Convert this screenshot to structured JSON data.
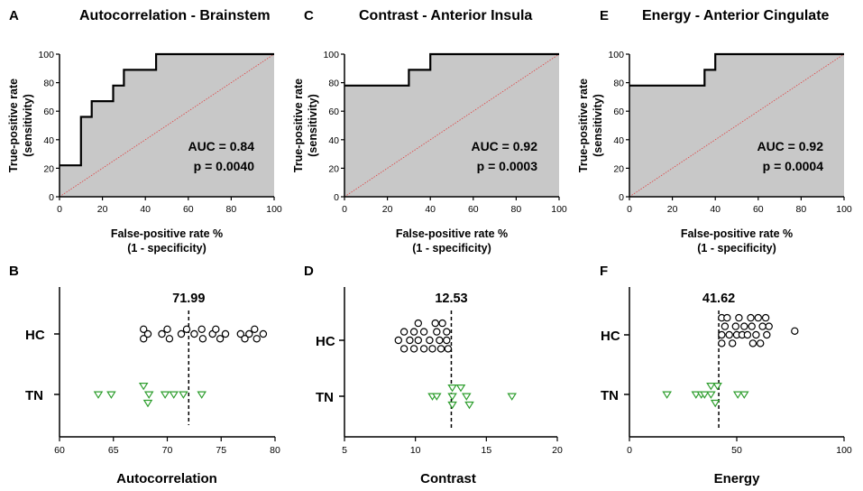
{
  "chart_data": [
    {
      "type": "line",
      "panel": "A",
      "title": "Autocorrelation - Brainstem",
      "xlabel": "False-positive rate %",
      "xlabel2": "(1 - specificity)",
      "ylabel": "True-positive rate",
      "ylabel2": "(sensitivity)",
      "xlim": [
        0,
        100
      ],
      "ylim": [
        0,
        100
      ],
      "xticks": [
        0,
        20,
        40,
        60,
        80,
        100
      ],
      "yticks": [
        0,
        20,
        40,
        60,
        80,
        100
      ],
      "auc_text": "AUC = 0.84",
      "p_text": "p = 0.0040",
      "roc": [
        [
          0,
          22
        ],
        [
          10,
          22
        ],
        [
          10,
          56
        ],
        [
          15,
          56
        ],
        [
          15,
          67
        ],
        [
          25,
          67
        ],
        [
          25,
          78
        ],
        [
          30,
          78
        ],
        [
          30,
          89
        ],
        [
          45,
          89
        ],
        [
          45,
          100
        ],
        [
          100,
          100
        ]
      ],
      "shaded": true
    },
    {
      "type": "line",
      "panel": "C",
      "title": "Contrast - Anterior Insula",
      "xlabel": "False-positive rate %",
      "xlabel2": "(1 - specificity)",
      "ylabel": "True-positive rate",
      "ylabel2": "(sensitivity)",
      "xlim": [
        0,
        100
      ],
      "ylim": [
        0,
        100
      ],
      "xticks": [
        0,
        20,
        40,
        60,
        80,
        100
      ],
      "yticks": [
        0,
        20,
        40,
        60,
        80,
        100
      ],
      "auc_text": "AUC = 0.92",
      "p_text": "p = 0.0003",
      "roc": [
        [
          0,
          78
        ],
        [
          30,
          78
        ],
        [
          30,
          89
        ],
        [
          40,
          89
        ],
        [
          40,
          100
        ],
        [
          100,
          100
        ]
      ],
      "shaded": true
    },
    {
      "type": "line",
      "panel": "E",
      "title": "Energy - Anterior Cingulate",
      "xlabel": "False-positive rate %",
      "xlabel2": "(1 - specificity)",
      "ylabel": "True-positive rate",
      "ylabel2": "(sensitivity)",
      "xlim": [
        0,
        100
      ],
      "ylim": [
        0,
        100
      ],
      "xticks": [
        0,
        20,
        40,
        60,
        80,
        100
      ],
      "yticks": [
        0,
        20,
        40,
        60,
        80,
        100
      ],
      "auc_text": "AUC = 0.92",
      "p_text": "p = 0.0004",
      "roc": [
        [
          0,
          78
        ],
        [
          35,
          78
        ],
        [
          35,
          89
        ],
        [
          40,
          89
        ],
        [
          40,
          100
        ],
        [
          100,
          100
        ]
      ],
      "shaded": true
    },
    {
      "type": "scatter",
      "panel": "B",
      "xlabel": "Autocorrelation",
      "xlim": [
        60,
        80
      ],
      "xticks": [
        60,
        65,
        70,
        75,
        80
      ],
      "threshold": 71.99,
      "threshold_label": "71.99",
      "groups": [
        "HC",
        "TN"
      ],
      "series": [
        {
          "name": "HC",
          "marker": "circle",
          "color": "#000000",
          "points": [
            [
              67.8,
              0.5
            ],
            [
              67.8,
              -0.5
            ],
            [
              68.2,
              0
            ],
            [
              69.5,
              0
            ],
            [
              70,
              0.5
            ],
            [
              70.2,
              -0.5
            ],
            [
              71.3,
              0
            ],
            [
              71.8,
              0.5
            ],
            [
              72.5,
              0
            ],
            [
              73.2,
              0.5
            ],
            [
              73.3,
              -0.5
            ],
            [
              74.2,
              0
            ],
            [
              74.5,
              0.5
            ],
            [
              74.9,
              -0.5
            ],
            [
              75.4,
              0
            ],
            [
              76.8,
              0
            ],
            [
              77.2,
              -0.5
            ],
            [
              77.6,
              0
            ],
            [
              78.1,
              0.5
            ],
            [
              78.3,
              -0.5
            ],
            [
              78.9,
              0
            ]
          ]
        },
        {
          "name": "TN",
          "marker": "triangle",
          "color": "#2e9e2e",
          "points": [
            [
              63.6,
              0
            ],
            [
              64.8,
              0
            ],
            [
              67.8,
              0.9
            ],
            [
              68.3,
              0
            ],
            [
              68.2,
              -0.9
            ],
            [
              69.8,
              0
            ],
            [
              70.6,
              0
            ],
            [
              71.5,
              0
            ],
            [
              73.2,
              0
            ]
          ]
        }
      ]
    },
    {
      "type": "scatter",
      "panel": "D",
      "xlabel": "Contrast",
      "xlim": [
        5,
        20
      ],
      "xticks": [
        5,
        10,
        15,
        20
      ],
      "threshold": 12.53,
      "threshold_label": "12.53",
      "groups": [
        "HC",
        "TN"
      ],
      "series": [
        {
          "name": "HC",
          "marker": "circle",
          "color": "#000000",
          "points": [
            [
              8.8,
              0
            ],
            [
              9.2,
              0.9
            ],
            [
              9.2,
              -0.9
            ],
            [
              9.6,
              0
            ],
            [
              9.9,
              0.9
            ],
            [
              9.9,
              -0.9
            ],
            [
              10.2,
              1.8
            ],
            [
              10.2,
              0
            ],
            [
              10.6,
              -0.9
            ],
            [
              10.6,
              0.9
            ],
            [
              11,
              0
            ],
            [
              11.2,
              -0.9
            ],
            [
              11.4,
              1.8
            ],
            [
              11.5,
              0.9
            ],
            [
              11.7,
              0
            ],
            [
              11.8,
              -0.9
            ],
            [
              11.9,
              1.8
            ],
            [
              12.2,
              0.9
            ],
            [
              12.2,
              0
            ],
            [
              12.3,
              -0.9
            ]
          ]
        },
        {
          "name": "TN",
          "marker": "triangle",
          "color": "#2e9e2e",
          "points": [
            [
              11.2,
              0
            ],
            [
              11.5,
              0
            ],
            [
              12.6,
              0.9
            ],
            [
              12.6,
              0
            ],
            [
              12.6,
              -0.9
            ],
            [
              13.2,
              0.9
            ],
            [
              13.6,
              0
            ],
            [
              13.8,
              -0.9
            ],
            [
              16.8,
              0
            ]
          ]
        }
      ]
    },
    {
      "type": "scatter",
      "panel": "F",
      "xlabel": "Energy",
      "xlim": [
        0,
        100
      ],
      "xticks": [
        0,
        50,
        100
      ],
      "threshold": 41.62,
      "threshold_label": "41.62",
      "groups": [
        "HC",
        "TN"
      ],
      "series": [
        {
          "name": "HC",
          "marker": "circle",
          "color": "#000000",
          "points": [
            [
              43,
              1.8
            ],
            [
              43,
              0
            ],
            [
              43,
              -0.9
            ],
            [
              44.5,
              0.9
            ],
            [
              45.5,
              1.8
            ],
            [
              46.5,
              0
            ],
            [
              48,
              -0.9
            ],
            [
              49.5,
              0.9
            ],
            [
              50,
              0
            ],
            [
              51,
              1.8
            ],
            [
              52.5,
              0
            ],
            [
              53.5,
              0.9
            ],
            [
              55,
              0
            ],
            [
              56.5,
              1.8
            ],
            [
              57,
              0.9
            ],
            [
              57.5,
              -0.9
            ],
            [
              59,
              0
            ],
            [
              60,
              1.8
            ],
            [
              61,
              -0.9
            ],
            [
              62,
              0.9
            ],
            [
              63.5,
              1.8
            ],
            [
              64,
              0
            ],
            [
              65,
              0.9
            ],
            [
              77,
              0.4
            ]
          ]
        },
        {
          "name": "TN",
          "marker": "triangle",
          "color": "#2e9e2e",
          "points": [
            [
              17.5,
              0
            ],
            [
              31,
              0
            ],
            [
              33.5,
              0
            ],
            [
              35,
              0
            ],
            [
              38,
              0.9
            ],
            [
              38,
              0
            ],
            [
              40,
              -0.9
            ],
            [
              41,
              0.9
            ],
            [
              50.5,
              0
            ],
            [
              53.5,
              0
            ]
          ]
        }
      ]
    }
  ]
}
